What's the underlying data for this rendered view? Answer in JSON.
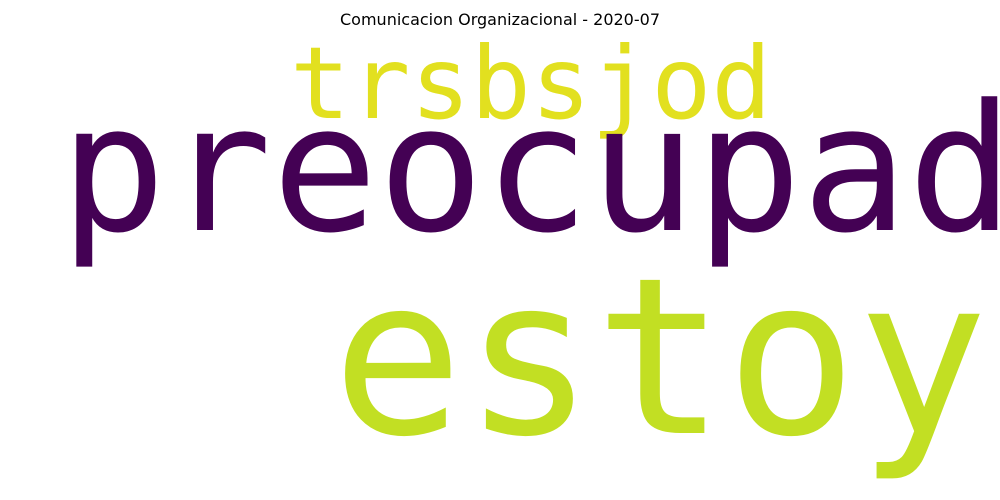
{
  "title": "Comunicacion Organizacional - 2020-07",
  "words": [
    {
      "text": "trsbsjod",
      "color": "#e2e01f"
    },
    {
      "text": "preocupada",
      "color": "#440154"
    },
    {
      "text": "estoy",
      "color": "#c2df23"
    }
  ]
}
